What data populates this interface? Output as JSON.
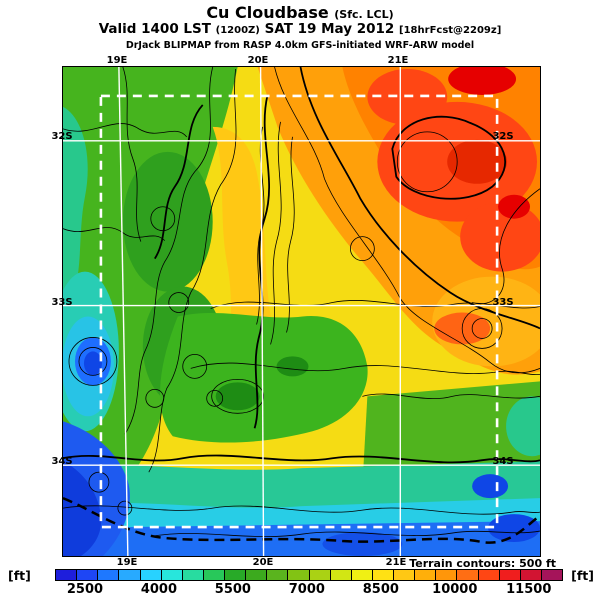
{
  "header": {
    "title": "Cu Cloudbase",
    "title_qualifier": "(Sfc. LCL)",
    "valid": {
      "part1": "Valid 1400 LST",
      "paren": "(1200Z)",
      "part2": "SAT 19 May 2012",
      "bracket": "[18hrFcst@2209z]"
    },
    "attribution": "DrJack BLIPMAP from RASP 4.0km GFS-initiated WRF-ARW model"
  },
  "map": {
    "lat_labels_left": [
      "32S",
      "33S",
      "34S"
    ],
    "lat_labels_right": [
      "32S",
      "33S",
      "34S"
    ],
    "lon_labels_top": [
      "19E",
      "20E",
      "21E"
    ],
    "lon_labels_bottom": [
      "19E",
      "20E",
      "21E"
    ],
    "terrain_note": "Terrain contours: 500 ft"
  },
  "colorbar": {
    "unit_left": "[ft]",
    "unit_right": "[ft]",
    "ticks": [
      "2500",
      "4000",
      "5500",
      "7000",
      "8500",
      "10000",
      "11500"
    ],
    "tick_start_pct": 5.9,
    "tick_step_pct": 14.56,
    "colors": [
      "#1E1EDC",
      "#1E46F5",
      "#1E78FF",
      "#28AAFF",
      "#28D2FF",
      "#28E6DC",
      "#28DCA0",
      "#28C85A",
      "#28AA28",
      "#3CAA1E",
      "#5AB41E",
      "#82C314",
      "#AAD214",
      "#D2E614",
      "#F0F014",
      "#FFE114",
      "#FFC814",
      "#FFAF0A",
      "#FF960A",
      "#FF6E14",
      "#FF4614",
      "#F01E1E",
      "#D21432",
      "#A5145A"
    ]
  },
  "chart_data": {
    "type": "heatmap",
    "title": "Cu Cloudbase (Sfc. LCL)",
    "valid": "Valid 1400 LST (1200Z) SAT 19 May 2012 [18hrFcst@2209z]",
    "model": "DrJack BLIPMAP from RASP 4.0km GFS-initiated WRF-ARW model",
    "units": "ft",
    "colorbar_ticks": [
      2500,
      4000,
      5500,
      7000,
      8500,
      10000,
      11500
    ],
    "value_range": [
      2000,
      12000
    ],
    "lat_ticks_deg_S": [
      32,
      33,
      34
    ],
    "lon_ticks_deg_E": [
      19,
      20,
      21
    ],
    "terrain_contour_interval_ft": 500,
    "legend_position": "bottom",
    "grid": "solid white lat/lon lines plus white dashed model-domain box",
    "field_summary": [
      {
        "region": "northeast interior (21E / 32S)",
        "cloudbase_ft": "10000-12000",
        "color": "orange-red"
      },
      {
        "region": "north-central band",
        "cloudbase_ft": "8500-10000",
        "color": "orange"
      },
      {
        "region": "central plateau / mid map",
        "cloudbase_ft": "7000-8500",
        "color": "yellow"
      },
      {
        "region": "western mountain ranges (19-20E)",
        "cloudbase_ft": "5500-7000",
        "color": "green, dense terrain contours"
      },
      {
        "region": "west coast edge (19E)",
        "cloudbase_ft": "4000-5500",
        "color": "teal-cyan with blue pockets"
      },
      {
        "region": "southern coastal strip (34S)",
        "cloudbase_ft": "2500-4000",
        "color": "cyan-blue"
      },
      {
        "region": "southwest corner and offshore",
        "cloudbase_ft": "2500-3500",
        "color": "blue"
      }
    ]
  }
}
